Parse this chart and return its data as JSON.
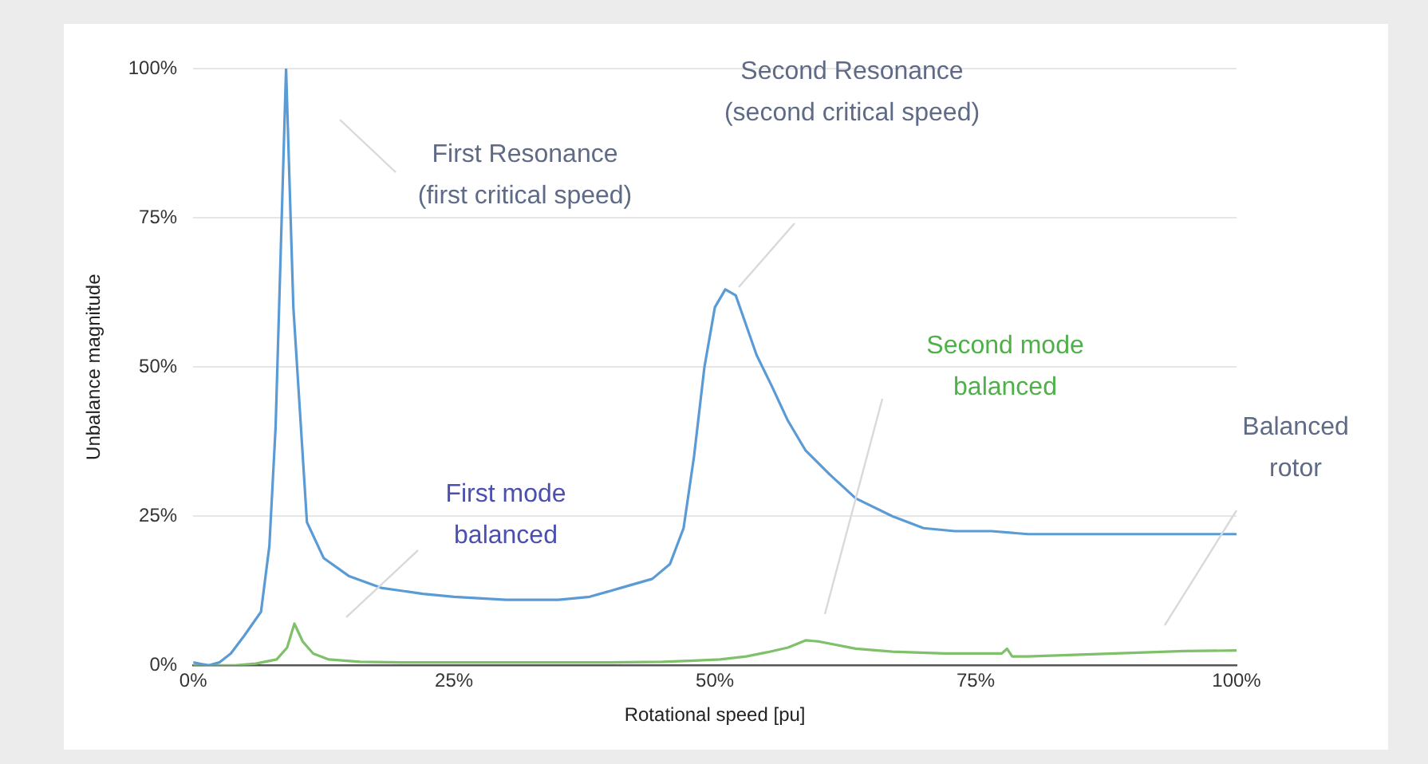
{
  "chart_data": {
    "type": "line",
    "xlabel": "Rotational speed [pu]",
    "ylabel": "Unbalance magnitude",
    "xlim": [
      0,
      100
    ],
    "xticks": [
      {
        "value": 0,
        "label": "0%"
      },
      {
        "value": 25,
        "label": "25%"
      },
      {
        "value": 50,
        "label": "50%"
      },
      {
        "value": 75,
        "label": "75%"
      },
      {
        "value": 100,
        "label": "100%"
      }
    ],
    "ylim": [
      0,
      100
    ],
    "yticks": [
      {
        "value": 0,
        "label": "0%"
      },
      {
        "value": 25,
        "label": "25%"
      },
      {
        "value": 50,
        "label": "50%"
      },
      {
        "value": 75,
        "label": "75%"
      },
      {
        "value": 100,
        "label": "100%"
      }
    ],
    "grid": "y",
    "legend": false,
    "marker": "none",
    "line_style": "solid",
    "series": [
      {
        "color": "#5b9bd5",
        "x": [
          0,
          1.5,
          2.5,
          3.6,
          4.9,
          5.7,
          6.5,
          7.3,
          7.9,
          8.4,
          8.9,
          9.6,
          10.9,
          12.5,
          14.9,
          18,
          22,
          25,
          30,
          35,
          38,
          41,
          44,
          45.7,
          47,
          48,
          49,
          50,
          51,
          52,
          53,
          54,
          55.4,
          57,
          58.7,
          61,
          63.5,
          67,
          70,
          73,
          76.5,
          80,
          84,
          88,
          92,
          96,
          100
        ],
        "values": [
          0.5,
          0,
          0.5,
          2,
          5,
          7,
          9,
          20,
          40,
          70,
          100,
          60,
          24,
          18,
          15,
          13,
          12,
          11.5,
          11,
          11,
          11.5,
          13,
          14.5,
          17,
          23,
          35,
          50,
          60,
          63,
          62,
          57,
          52,
          47,
          41,
          36,
          32,
          28,
          25,
          23,
          22.5,
          22.5,
          22,
          22,
          22,
          22,
          22,
          22
        ]
      },
      {
        "color": "#7fc06a",
        "x": [
          0,
          4,
          6,
          8,
          9,
          9.7,
          10.5,
          11.5,
          13,
          16,
          20,
          30,
          40,
          45,
          48,
          50.5,
          53,
          55,
          57,
          58.7,
          60,
          63.5,
          67,
          72,
          75,
          77.5,
          78,
          78.5,
          80,
          85,
          90,
          95,
          100
        ],
        "values": [
          0,
          0,
          0.3,
          1,
          3,
          7,
          4,
          2,
          1,
          0.6,
          0.5,
          0.5,
          0.5,
          0.6,
          0.8,
          1,
          1.5,
          2.2,
          3,
          4.2,
          4,
          2.8,
          2.3,
          2,
          2,
          2,
          2.8,
          1.5,
          1.5,
          1.8,
          2.1,
          2.4,
          2.5
        ]
      }
    ],
    "annotations": [
      "First Resonance\n(first critical speed)",
      "Second Resonance\n(second critical speed)",
      "First mode\nbalanced",
      "Second mode\nbalanced",
      "Balanced\nrotor"
    ]
  }
}
